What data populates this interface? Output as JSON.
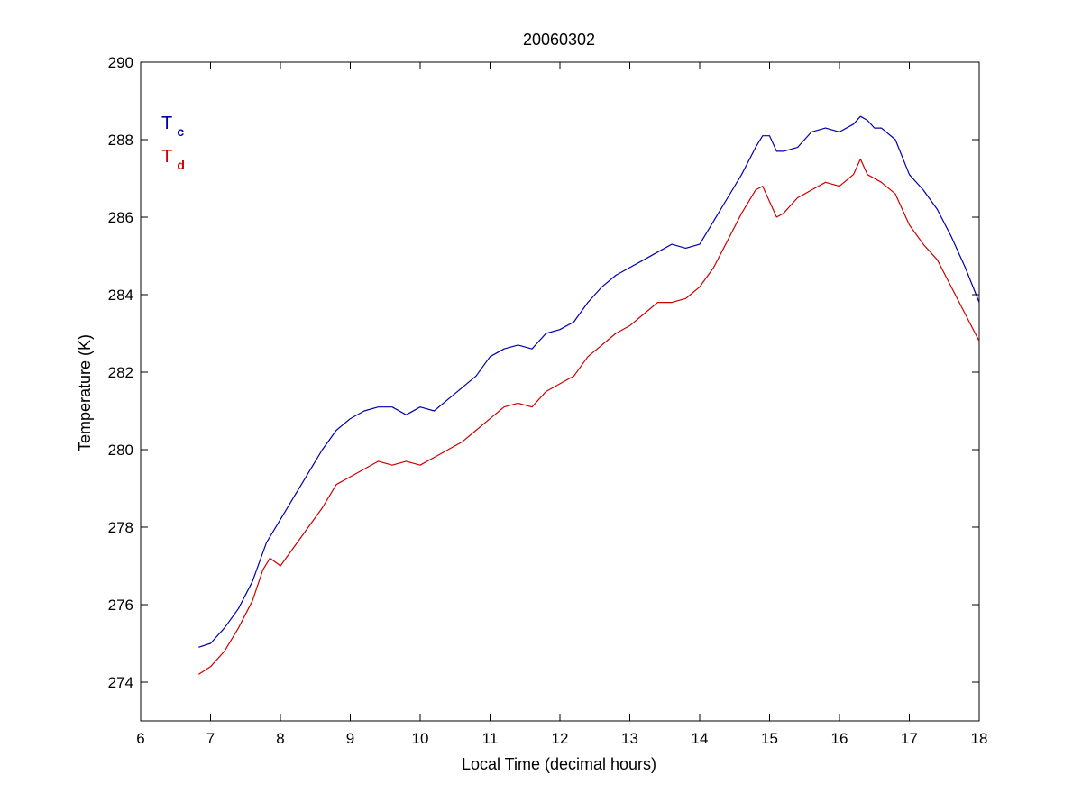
{
  "chart_data": {
    "type": "line",
    "title": "20060302",
    "xlabel": "Local Time (decimal hours)",
    "ylabel": "Temperature (K)",
    "xlim": [
      6,
      18
    ],
    "ylim": [
      273,
      290
    ],
    "x_ticks": [
      "6",
      "7",
      "8",
      "9",
      "10",
      "11",
      "12",
      "13",
      "14",
      "15",
      "16",
      "17",
      "18"
    ],
    "y_ticks": [
      "274",
      "276",
      "278",
      "280",
      "282",
      "284",
      "286",
      "288",
      "290"
    ],
    "grid": false,
    "legend_position": "top-left",
    "series": [
      {
        "name": "Tc",
        "label_main": "T",
        "label_sub": "c",
        "color": "#0000aa",
        "x": [
          6.83,
          7.0,
          7.2,
          7.4,
          7.6,
          7.8,
          8.0,
          8.2,
          8.4,
          8.6,
          8.8,
          9.0,
          9.2,
          9.4,
          9.6,
          9.8,
          10.0,
          10.2,
          10.4,
          10.6,
          10.8,
          11.0,
          11.2,
          11.4,
          11.6,
          11.8,
          12.0,
          12.2,
          12.4,
          12.6,
          12.8,
          13.0,
          13.2,
          13.4,
          13.6,
          13.8,
          14.0,
          14.2,
          14.4,
          14.6,
          14.8,
          14.9,
          15.0,
          15.1,
          15.2,
          15.4,
          15.6,
          15.8,
          16.0,
          16.2,
          16.3,
          16.4,
          16.5,
          16.6,
          16.8,
          17.0,
          17.2,
          17.4,
          17.6,
          17.8,
          18.0
        ],
        "y": [
          274.9,
          275.0,
          275.4,
          275.9,
          276.6,
          277.6,
          278.2,
          278.8,
          279.4,
          280.0,
          280.5,
          280.8,
          281.0,
          281.1,
          281.1,
          280.9,
          281.1,
          281.0,
          281.3,
          281.6,
          281.9,
          282.4,
          282.6,
          282.7,
          282.6,
          283.0,
          283.1,
          283.3,
          283.8,
          284.2,
          284.5,
          284.7,
          284.9,
          285.1,
          285.3,
          285.2,
          285.3,
          285.9,
          286.5,
          287.1,
          287.8,
          288.1,
          288.1,
          287.7,
          287.7,
          287.8,
          288.2,
          288.3,
          288.2,
          288.4,
          288.6,
          288.5,
          288.3,
          288.3,
          288.0,
          287.1,
          286.7,
          286.2,
          285.5,
          284.7,
          283.8
        ]
      },
      {
        "name": "Td",
        "label_main": "T",
        "label_sub": "d",
        "color": "#cc0000",
        "x": [
          6.83,
          7.0,
          7.2,
          7.4,
          7.6,
          7.75,
          7.85,
          8.0,
          8.2,
          8.4,
          8.6,
          8.8,
          9.0,
          9.2,
          9.4,
          9.6,
          9.8,
          10.0,
          10.2,
          10.4,
          10.6,
          10.8,
          11.0,
          11.2,
          11.4,
          11.6,
          11.8,
          12.0,
          12.2,
          12.4,
          12.6,
          12.8,
          13.0,
          13.2,
          13.4,
          13.6,
          13.8,
          14.0,
          14.2,
          14.4,
          14.6,
          14.8,
          14.9,
          15.0,
          15.1,
          15.2,
          15.4,
          15.6,
          15.8,
          16.0,
          16.2,
          16.3,
          16.4,
          16.6,
          16.8,
          17.0,
          17.2,
          17.4,
          17.6,
          17.8,
          18.0
        ],
        "y": [
          274.2,
          274.4,
          274.8,
          275.4,
          276.1,
          276.9,
          277.2,
          277.0,
          277.5,
          278.0,
          278.5,
          279.1,
          279.3,
          279.5,
          279.7,
          279.6,
          279.7,
          279.6,
          279.8,
          280.0,
          280.2,
          280.5,
          280.8,
          281.1,
          281.2,
          281.1,
          281.5,
          281.7,
          281.9,
          282.4,
          282.7,
          283.0,
          283.2,
          283.5,
          283.8,
          283.8,
          283.9,
          284.2,
          284.7,
          285.4,
          286.1,
          286.7,
          286.8,
          286.4,
          286.0,
          286.1,
          286.5,
          286.7,
          286.9,
          286.8,
          287.1,
          287.5,
          287.1,
          286.9,
          286.6,
          285.8,
          285.3,
          284.9,
          284.2,
          283.5,
          282.8
        ]
      }
    ]
  }
}
